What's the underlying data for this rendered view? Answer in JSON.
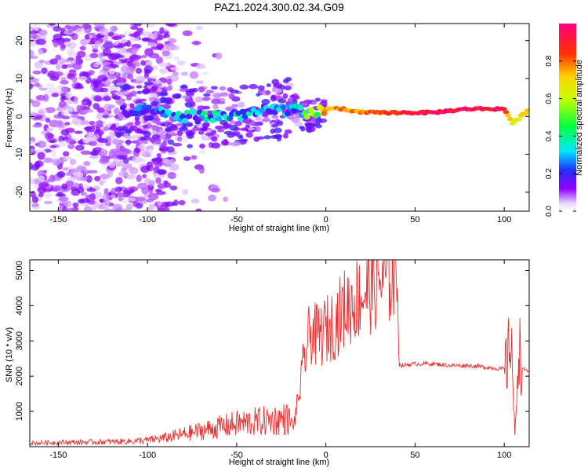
{
  "title": "PAZ1.2024.300.02.34.G09",
  "chart_data": [
    {
      "type": "heatmap",
      "xlabel": "Height of straight line (km)",
      "ylabel": "Frequency (Hz)",
      "xlim": [
        -166,
        114
      ],
      "ylim": [
        -25,
        24.5
      ],
      "xticks": [
        -150,
        -100,
        -50,
        0,
        50,
        100
      ],
      "yticks": [
        -20,
        -10,
        0,
        10,
        20
      ],
      "colorbar": {
        "label": "Normalized spectral amplitude",
        "range": [
          0,
          1
        ],
        "ticks": [
          0.0,
          0.2,
          0.4,
          0.6,
          0.8
        ],
        "colormap": "rainbow (white-violet-blue-cyan-green-yellow-red-magenta)"
      },
      "ridge": {
        "description": "dominant spectral line near 0-2 Hz",
        "x": [
          -115,
          -100,
          -80,
          -60,
          -40,
          -20,
          -10,
          0,
          10,
          20,
          40,
          60,
          80,
          100,
          105,
          114
        ],
        "freq_hz": [
          1,
          1,
          0,
          0,
          1,
          2,
          0,
          2,
          2,
          1,
          1,
          1,
          2,
          2,
          -2,
          2
        ],
        "amplitude": [
          0.15,
          0.25,
          0.3,
          0.35,
          0.3,
          0.3,
          0.5,
          0.75,
          0.8,
          0.8,
          0.9,
          0.95,
          0.95,
          0.95,
          0.6,
          0.8
        ]
      },
      "grid": false
    },
    {
      "type": "line",
      "xlabel": "Height of straight line (km)",
      "ylabel": "SNR (10 * v/v)",
      "xlim": [
        -166,
        114
      ],
      "ylim": [
        0,
        5300
      ],
      "xticks": [
        -150,
        -100,
        -50,
        0,
        50,
        100
      ],
      "yticks": [
        1000,
        2000,
        3000,
        4000,
        5000
      ],
      "color": "#e83030",
      "series": [
        {
          "x": [
            -166,
            -150,
            -130,
            -110,
            -100,
            -90,
            -80,
            -70,
            -60,
            -50,
            -40,
            -30,
            -22,
            -18,
            -15,
            -12,
            -10,
            -8,
            -5,
            0,
            5,
            10,
            20,
            30,
            38,
            40,
            41,
            50,
            60,
            70,
            80,
            90,
            100,
            102,
            104,
            105,
            106,
            108,
            110,
            114
          ],
          "y": [
            100,
            120,
            130,
            150,
            180,
            250,
            350,
            450,
            550,
            650,
            700,
            750,
            800,
            600,
            1500,
            2500,
            3000,
            3300,
            3100,
            3300,
            3500,
            3900,
            4300,
            4700,
            4900,
            4950,
            2300,
            2350,
            2350,
            2300,
            2300,
            2250,
            2200,
            2400,
            3500,
            1500,
            200,
            3000,
            2200,
            2150
          ]
        }
      ],
      "grid": false
    }
  ]
}
